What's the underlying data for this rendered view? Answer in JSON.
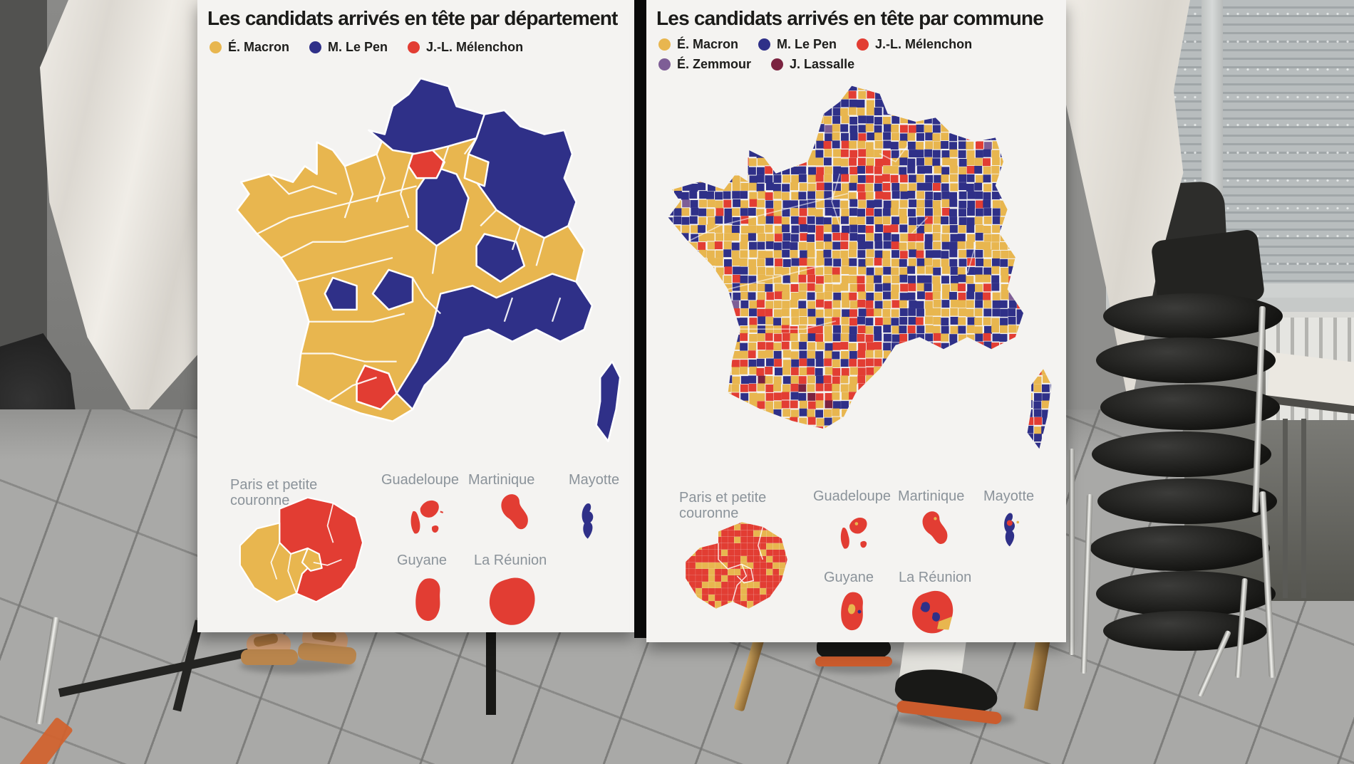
{
  "colors": {
    "macron": "#e8b64f",
    "lepen": "#2f3088",
    "melenchon": "#e23d33",
    "zemmour": "#7e5e96",
    "lassalle": "#7b2340",
    "panel_bg": "#f4f3f1",
    "inset_label_gray": "#8b939a",
    "title_color": "#1b1b19"
  },
  "panels": {
    "left": {
      "title": "Les candidats arrivés en tête par département",
      "legend": [
        {
          "label": "É. Macron",
          "color": "#e8b64f"
        },
        {
          "label": "M. Le Pen",
          "color": "#2f3088"
        },
        {
          "label": "J.-L. Mélenchon",
          "color": "#e23d33"
        }
      ],
      "inset_labels": {
        "paris": "Paris et petite couronne",
        "guadeloupe": "Guadeloupe",
        "martinique": "Martinique",
        "mayotte": "Mayotte",
        "guyane": "Guyane",
        "reunion": "La Réunion"
      }
    },
    "right": {
      "title": "Les candidats arrivés en tête par commune",
      "legend_row1": [
        {
          "label": "É. Macron",
          "color": "#e8b64f"
        },
        {
          "label": "M. Le Pen",
          "color": "#2f3088"
        },
        {
          "label": "J.-L. Mélenchon",
          "color": "#e23d33"
        }
      ],
      "legend_row2": [
        {
          "label": "É. Zemmour",
          "color": "#7e5e96"
        },
        {
          "label": "J. Lassalle",
          "color": "#7b2340"
        }
      ],
      "inset_labels": {
        "paris": "Paris et petite couronne",
        "guadeloupe": "Guadeloupe",
        "martinique": "Martinique",
        "mayotte": "Mayotte",
        "guyane": "Guyane",
        "reunion": "La Réunion"
      }
    }
  },
  "chart_data": [
    {
      "type": "choropleth_map",
      "title": "Les candidats arrivés en tête par département",
      "geography": "France métropolitaine et outre-mer, colorée par département selon le candidat en tête au 1er tour",
      "legend_position": "top-left under title",
      "categories": [
        {
          "name": "É. Macron",
          "color": "#e8b64f",
          "areas_leading": "majorité des départements : ouest, Bretagne, centre, sud-ouest atlantique"
        },
        {
          "name": "M. Le Pen",
          "color": "#2f3088",
          "areas_leading": "nord, nord-est, départements du centre-est, arc méditerranéen, Corse, Mayotte"
        },
        {
          "name": "J.-L. Mélenchon",
          "color": "#e23d33",
          "areas_leading": "Paris et petite couronne, un département du sud-ouest (région Toulouse), Guadeloupe, Martinique, Guyane, La Réunion"
        }
      ],
      "insets": [
        "Paris et petite couronne",
        "Guadeloupe",
        "Martinique",
        "Mayotte",
        "Guyane",
        "La Réunion"
      ],
      "inset_winners": {
        "paris_petite_couronne": "mixte Mélenchon (rouge) / Macron (jaune)",
        "guadeloupe": "Mélenchon",
        "martinique": "Mélenchon",
        "mayotte": "Le Pen",
        "guyane": "Mélenchon",
        "la_reunion": "Mélenchon"
      }
    },
    {
      "type": "choropleth_map",
      "title": "Les candidats arrivés en tête par commune",
      "geography": "France métropolitaine et outre-mer, mosaïque fine colorée par commune selon le candidat en tête",
      "legend_position": "top-left under title, two rows",
      "categories": [
        {
          "name": "É. Macron",
          "color": "#e8b64f",
          "areas_leading": "mosaïque dense, dominante à l'ouest et au centre"
        },
        {
          "name": "M. Le Pen",
          "color": "#2f3088",
          "areas_leading": "mosaïque dense, dominante au nord, nord-est, sud-est et Corse"
        },
        {
          "name": "J.-L. Mélenchon",
          "color": "#e23d33",
          "areas_leading": "nombreuses communes du sud et du sud-ouest, agglomérations, outre-mer"
        },
        {
          "name": "É. Zemmour",
          "color": "#7e5e96",
          "areas_leading": "communes éparses"
        },
        {
          "name": "J. Lassalle",
          "color": "#7b2340",
          "areas_leading": "communes éparses des Pyrénées / sud-ouest"
        }
      ],
      "insets": [
        "Paris et petite couronne",
        "Guadeloupe",
        "Martinique",
        "Mayotte",
        "Guyane",
        "La Réunion"
      ],
      "inset_winners": {
        "paris_petite_couronne": "mosaïque Mélenchon / Macron",
        "guadeloupe": "Mélenchon",
        "martinique": "Mélenchon",
        "mayotte": "Le Pen avec quelques communes Mélenchon",
        "guyane": "Mélenchon avec communes Macron et Le Pen",
        "la_reunion": "Mélenchon avec communes Le Pen et Macron"
      }
    }
  ]
}
